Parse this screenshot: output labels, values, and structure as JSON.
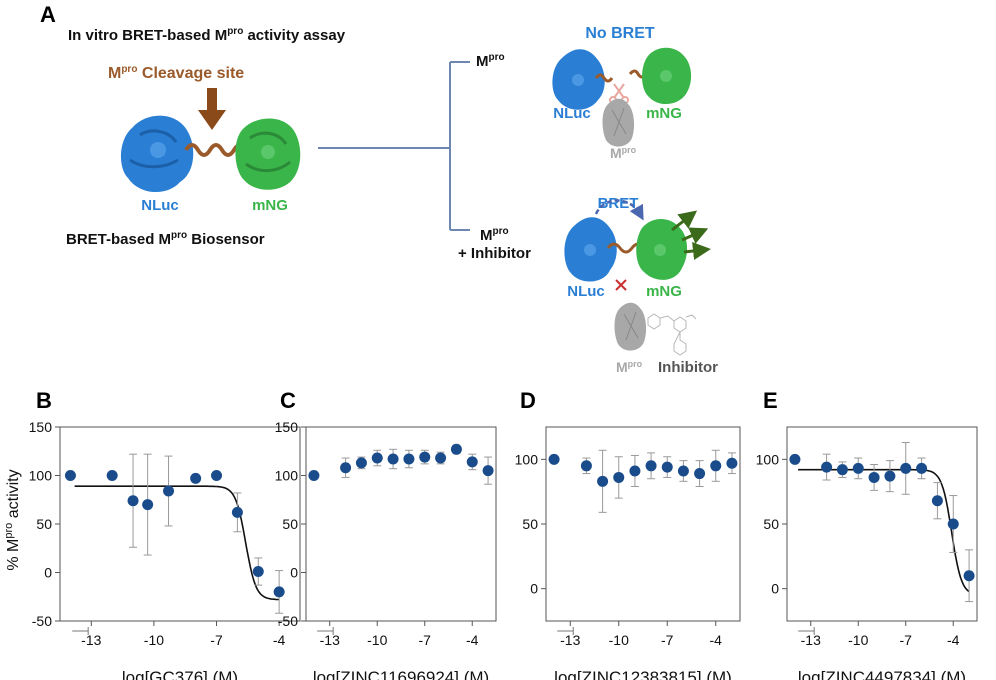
{
  "panel_a": {
    "letter": "A",
    "title_pre": "In vitro BRET-based M",
    "title_sup": "pro",
    "title_post": " activity assay",
    "cleavage_pre": "M",
    "cleavage_sup": "pro",
    "cleavage_post": " Cleavage site",
    "nluc": "NLuc",
    "mng": "mNG",
    "biosensor_pre": "BRET-based M",
    "biosensor_sup": "pro",
    "biosensor_post": " Biosensor",
    "branch_top_pre": "M",
    "branch_top_sup": "pro",
    "branch_bottom_pre": "M",
    "branch_bottom_sup": "pro",
    "branch_bottom_line2": "+ Inhibitor",
    "no_bret": "No BRET",
    "bret": "BRET",
    "mpro_pre": "M",
    "mpro_sup": "pro",
    "inhibitor": "Inhibitor",
    "colors": {
      "nluc": "#2a7fd4",
      "mng": "#3ab54a",
      "linker": "#9a5a2a",
      "mpro": "#a8a8a8",
      "line": "#6d87b0"
    }
  },
  "y_axis_label_pre": "% M",
  "y_axis_label_sup": "pro",
  "y_axis_label_post": " activity",
  "chart_data": [
    {
      "letter": "B",
      "type": "scatter",
      "xlabel": "log[GC376] (M)",
      "xticks": [
        -13,
        -10,
        -7,
        -4
      ],
      "yticks": [
        150,
        100,
        50,
        0,
        -50
      ],
      "ylim": [
        -50,
        150
      ],
      "xlim": [
        -14.5,
        -3
      ],
      "points": [
        {
          "x": -14,
          "y": 100,
          "err": 0
        },
        {
          "x": -12,
          "y": 100,
          "err": 0
        },
        {
          "x": -11,
          "y": 74,
          "err": 48
        },
        {
          "x": -10.3,
          "y": 70,
          "err": 52
        },
        {
          "x": -9.3,
          "y": 84,
          "err": 36
        },
        {
          "x": -8,
          "y": 97,
          "err": 0
        },
        {
          "x": -7,
          "y": 100,
          "err": 0
        },
        {
          "x": -6,
          "y": 62,
          "err": 20
        },
        {
          "x": -5,
          "y": 1,
          "err": 14
        },
        {
          "x": -4,
          "y": -20,
          "err": 22
        }
      ],
      "fit": {
        "top": 89,
        "bottom": -28,
        "ec50": -5.6,
        "hill": 1.8,
        "from": -13.8
      },
      "color": "#1a4c8c"
    },
    {
      "letter": "C",
      "type": "scatter",
      "xlabel": "log[ZINC11696924] (M)",
      "xticks": [
        -13,
        -10,
        -7,
        -4
      ],
      "yticks": [
        150,
        100,
        50,
        0,
        -50
      ],
      "ylim": [
        -50,
        150
      ],
      "xlim": [
        -14.5,
        -2.5
      ],
      "points": [
        {
          "x": -14,
          "y": 100,
          "err": 0
        },
        {
          "x": -12,
          "y": 108,
          "err": 10
        },
        {
          "x": -11,
          "y": 113,
          "err": 6
        },
        {
          "x": -10,
          "y": 118,
          "err": 8
        },
        {
          "x": -9,
          "y": 117,
          "err": 10
        },
        {
          "x": -8,
          "y": 117,
          "err": 9
        },
        {
          "x": -7,
          "y": 119,
          "err": 7
        },
        {
          "x": -6,
          "y": 118,
          "err": 6
        },
        {
          "x": -5,
          "y": 127,
          "err": 4
        },
        {
          "x": -4,
          "y": 114,
          "err": 8
        },
        {
          "x": -3,
          "y": 105,
          "err": 14
        }
      ],
      "color": "#1a4c8c"
    },
    {
      "letter": "D",
      "type": "scatter",
      "xlabel": "log[ZINC12383815] (M)",
      "xticks": [
        -13,
        -10,
        -7,
        -4
      ],
      "yticks": [
        100,
        50,
        0
      ],
      "ylim": [
        -25,
        125
      ],
      "xlim": [
        -14.5,
        -2.5
      ],
      "points": [
        {
          "x": -14,
          "y": 100,
          "err": 0
        },
        {
          "x": -12,
          "y": 95,
          "err": 6
        },
        {
          "x": -11,
          "y": 83,
          "err": 24
        },
        {
          "x": -10,
          "y": 86,
          "err": 16
        },
        {
          "x": -9,
          "y": 91,
          "err": 12
        },
        {
          "x": -8,
          "y": 95,
          "err": 10
        },
        {
          "x": -7,
          "y": 94,
          "err": 8
        },
        {
          "x": -6,
          "y": 91,
          "err": 8
        },
        {
          "x": -5,
          "y": 89,
          "err": 10
        },
        {
          "x": -4,
          "y": 95,
          "err": 12
        },
        {
          "x": -3,
          "y": 97,
          "err": 8
        }
      ],
      "color": "#1a4c8c"
    },
    {
      "letter": "E",
      "type": "scatter",
      "xlabel": "log[ZINC4497834] (M)",
      "xticks": [
        -13,
        -10,
        -7,
        -4
      ],
      "yticks": [
        100,
        50,
        0
      ],
      "ylim": [
        -25,
        125
      ],
      "xlim": [
        -14.5,
        -2.5
      ],
      "points": [
        {
          "x": -14,
          "y": 100,
          "err": 0
        },
        {
          "x": -12,
          "y": 94,
          "err": 10
        },
        {
          "x": -11,
          "y": 92,
          "err": 6
        },
        {
          "x": -10,
          "y": 93,
          "err": 8
        },
        {
          "x": -9,
          "y": 86,
          "err": 10
        },
        {
          "x": -8,
          "y": 87,
          "err": 12
        },
        {
          "x": -7,
          "y": 93,
          "err": 20
        },
        {
          "x": -6,
          "y": 93,
          "err": 8
        },
        {
          "x": -5,
          "y": 68,
          "err": 14
        },
        {
          "x": -4,
          "y": 50,
          "err": 22
        },
        {
          "x": -3,
          "y": 10,
          "err": 20
        }
      ],
      "fit": {
        "top": 92,
        "bottom": -5,
        "ec50": -4.1,
        "hill": 1.4,
        "from": -13.8
      },
      "color": "#1a4c8c"
    }
  ]
}
